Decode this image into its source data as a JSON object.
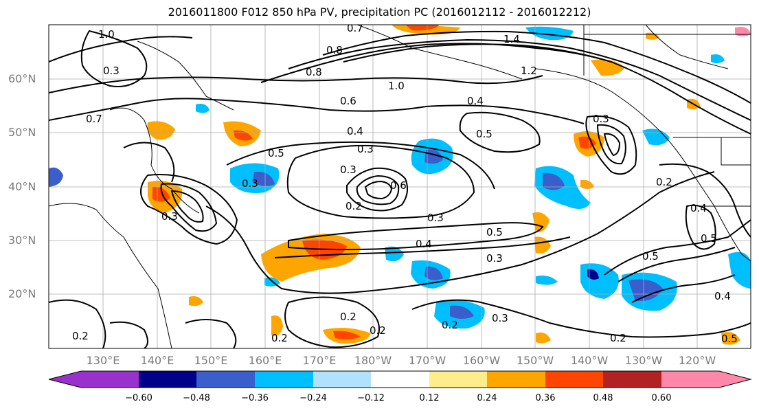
{
  "title": "2016011800 F012 850 hPa PV, precipitation PC (2016012112 - 2016012212)",
  "lat_labels": [
    "60°N",
    "50°N",
    "40°N",
    "30°N",
    "20°N"
  ],
  "lon_labels": [
    "130°E",
    "140°E",
    "150°E",
    "160°E",
    "170°E",
    "180°W",
    "170°W",
    "160°W",
    "150°W",
    "140°W",
    "130°W",
    "120°W"
  ],
  "contour_labels": [
    "1.0",
    "0.7",
    "0.8",
    "1.4",
    "1.2",
    "0.8",
    "1.0",
    "0.6",
    "0.4",
    "0.7",
    "0.5",
    "0.4",
    "0.3",
    "0.5",
    "0.3",
    "0.3",
    "0.2",
    "0.5",
    "0.3",
    "0.3",
    "0.4",
    "0.5",
    "0.3",
    "0.2",
    "0.2",
    "0.2",
    "0.2",
    "0.2",
    "0.4",
    "0.5",
    "0.2",
    "0.2",
    "0.3",
    "0.6",
    "0.3",
    "0.4",
    "0.5",
    "0.3"
  ],
  "colorbar": {
    "ticks": [
      "−0.60",
      "−0.48",
      "−0.36",
      "−0.24",
      "−0.12",
      "0.12",
      "0.24",
      "0.36",
      "0.48",
      "0.60"
    ],
    "colors": [
      "#9932cc",
      "#00008b",
      "#3a5fcd",
      "#00bfff",
      "#b0e2ff",
      "#ffffff",
      "#ffec8b",
      "#ffa500",
      "#ff4500",
      "#b22222",
      "#ff88aa"
    ]
  }
}
